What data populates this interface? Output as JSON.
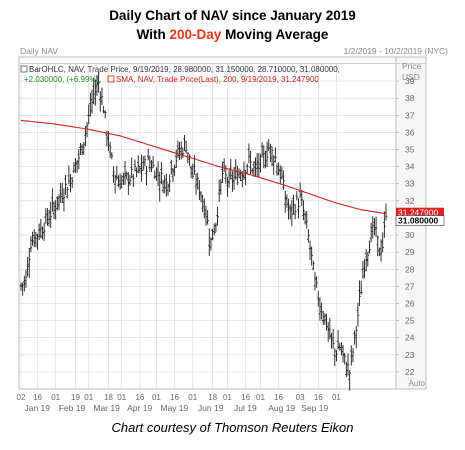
{
  "title": {
    "line1": "Daily Chart of NAV since January 2019",
    "line2_prefix": "With ",
    "line2_highlight": "200-Day",
    "line2_suffix": " Moving Average"
  },
  "caption": "Chart courtesy of Thomson Reuters Eikon",
  "chart_header": {
    "left": "Daily NAV",
    "right": "1/2/2019 - 10/2/2019 (NYC)",
    "price_label": "Price",
    "currency_label": "USD",
    "legend_bar_line1": "BarOHLC, NAV, Trade Price, 9/19/2019, 28.980000, 31.150000, 28.710000, 31.080000,",
    "legend_bar_line2": "+2.030000, (+6.99%),",
    "legend_sma": "SMA, NAV, Trade Price(Last), 200, 9/19/2019, 31.247900",
    "auto_label": "Auto"
  },
  "colors": {
    "price_bars": "#1a1a1a",
    "sma": "#d62020",
    "grid": "#d8d8d8",
    "axis_text": "#666666",
    "highlight": "#e8371f"
  },
  "chart_data": {
    "type": "ohlc",
    "ylim": [
      21,
      40
    ],
    "yticks": [
      22,
      23,
      24,
      25,
      26,
      27,
      28,
      29,
      30,
      31,
      32,
      33,
      34,
      35,
      36,
      37,
      38,
      39
    ],
    "x_top_ticks": [
      "02",
      "16",
      "01",
      "19",
      "01",
      "18",
      "01",
      "16",
      "01",
      "16",
      "01",
      "18",
      "01",
      "16",
      "01",
      "16",
      "03",
      "16",
      "01"
    ],
    "x_months": [
      "Jan 19",
      "Feb 19",
      "Mar 19",
      "Apr 19",
      "May 19",
      "Jun 19",
      "Jul 19",
      "Aug 19",
      "Sep 19"
    ],
    "last_price": "31.080000",
    "sma_last": "31.247900",
    "price_path": [
      [
        0,
        27.0
      ],
      [
        3,
        27.4
      ],
      [
        6,
        29.6
      ],
      [
        12,
        30.3
      ],
      [
        18,
        31.3
      ],
      [
        24,
        32.3
      ],
      [
        30,
        33.3
      ],
      [
        36,
        34.8
      ],
      [
        40,
        36.4
      ],
      [
        44,
        38.2
      ],
      [
        47,
        38.9
      ],
      [
        50,
        37.5
      ],
      [
        52,
        36.0
      ],
      [
        56,
        33.7
      ],
      [
        60,
        33.1
      ],
      [
        66,
        33.4
      ],
      [
        72,
        33.8
      ],
      [
        78,
        34.3
      ],
      [
        84,
        33.4
      ],
      [
        88,
        33.0
      ],
      [
        92,
        34.1
      ],
      [
        96,
        34.9
      ],
      [
        100,
        35.3
      ],
      [
        104,
        33.5
      ],
      [
        108,
        32.8
      ],
      [
        112,
        31.3
      ],
      [
        115,
        29.6
      ],
      [
        118,
        30.8
      ],
      [
        122,
        33.6
      ],
      [
        126,
        33.1
      ],
      [
        130,
        33.4
      ],
      [
        134,
        33.8
      ],
      [
        138,
        34.3
      ],
      [
        142,
        33.7
      ],
      [
        146,
        34.3
      ],
      [
        150,
        35.1
      ],
      [
        154,
        34.5
      ],
      [
        158,
        33.3
      ],
      [
        160,
        32.2
      ],
      [
        163,
        31.2
      ],
      [
        166,
        31.8
      ],
      [
        169,
        32.1
      ],
      [
        172,
        31.0
      ],
      [
        175,
        29.3
      ],
      [
        178,
        27.2
      ],
      [
        181,
        26.0
      ],
      [
        184,
        25.2
      ],
      [
        187,
        24.1
      ],
      [
        190,
        23.2
      ],
      [
        193,
        23.5
      ],
      [
        196,
        22.6
      ],
      [
        199,
        22.0
      ],
      [
        202,
        23.8
      ],
      [
        205,
        26.1
      ],
      [
        208,
        28.4
      ],
      [
        211,
        29.6
      ],
      [
        214,
        30.4
      ],
      [
        217,
        29.1
      ],
      [
        219,
        29.4
      ],
      [
        221,
        31.08
      ]
    ],
    "sma": [
      [
        0,
        36.7
      ],
      [
        20,
        36.5
      ],
      [
        40,
        36.2
      ],
      [
        60,
        35.8
      ],
      [
        80,
        35.2
      ],
      [
        100,
        34.6
      ],
      [
        120,
        34.0
      ],
      [
        140,
        33.5
      ],
      [
        160,
        32.9
      ],
      [
        175,
        32.4
      ],
      [
        190,
        31.9
      ],
      [
        205,
        31.5
      ],
      [
        221,
        31.25
      ]
    ]
  }
}
